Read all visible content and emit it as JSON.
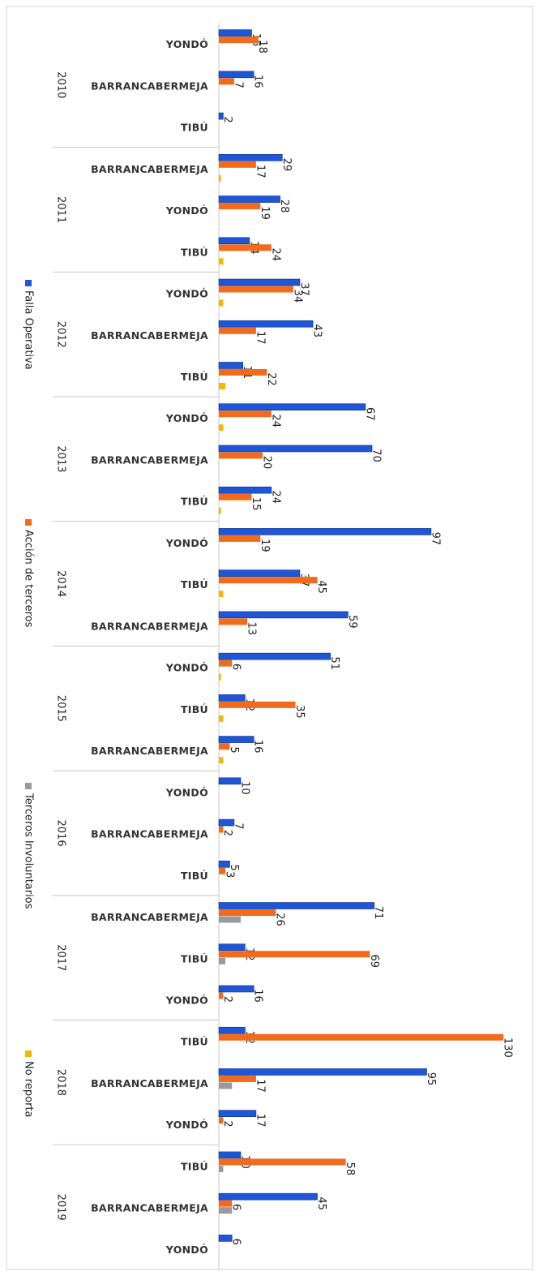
{
  "chart_data": {
    "type": "bar",
    "orientation": "horizontal",
    "category_groups": [
      "2010",
      "2011",
      "2012",
      "2013",
      "2014",
      "2015",
      "2016",
      "2017",
      "2018",
      "2019"
    ],
    "categories": [
      "YONDÓ",
      "BARRANCABERMEJA",
      "TIBÚ",
      "BARRANCABERMEJA",
      "YONDÓ",
      "TIBÚ",
      "YONDÓ",
      "BARRANCABERMEJA",
      "TIBÚ",
      "YONDÓ",
      "BARRANCABERMEJA",
      "TIBÚ",
      "YONDÓ",
      "TIBÚ",
      "BARRANCABERMEJA",
      "YONDÓ",
      "TIBÚ",
      "BARRANCABERMEJA",
      "YONDÓ",
      "BARRANCABERMEJA",
      "TIBÚ",
      "BARRANCABERMEJA",
      "TIBÚ",
      "YONDÓ",
      "TIBÚ",
      "BARRANCABERMEJA",
      "YONDÓ",
      "TIBÚ",
      "BARRANCABERMEJA",
      "YONDÓ"
    ],
    "series": [
      {
        "name": "Falla Operativa",
        "color": "#1f56d6",
        "data_labels": true,
        "values": [
          15,
          16,
          2,
          29,
          28,
          14,
          37,
          43,
          11,
          67,
          70,
          24,
          97,
          37,
          59,
          51,
          12,
          16,
          10,
          7,
          5,
          71,
          12,
          16,
          12,
          95,
          17,
          10,
          45,
          6
        ]
      },
      {
        "name": "Acción de terceros",
        "color": "#f26a1b",
        "data_labels": true,
        "values": [
          18,
          7,
          null,
          17,
          19,
          24,
          34,
          17,
          22,
          24,
          20,
          15,
          19,
          45,
          13,
          6,
          35,
          5,
          null,
          2,
          3,
          26,
          69,
          2,
          130,
          17,
          2,
          58,
          6,
          null
        ]
      },
      {
        "name": "Terceros Involuntarios",
        "color": "#9a9a9a",
        "data_labels": false,
        "values": [
          null,
          null,
          null,
          null,
          null,
          null,
          null,
          null,
          null,
          null,
          null,
          null,
          null,
          null,
          null,
          null,
          null,
          null,
          null,
          null,
          null,
          10,
          3,
          null,
          null,
          6,
          null,
          2,
          6,
          null
        ]
      },
      {
        "name": "No reporta",
        "color": "#f5b800",
        "data_labels": false,
        "values": [
          null,
          null,
          null,
          1,
          null,
          2,
          2,
          null,
          3,
          2,
          null,
          1,
          null,
          2,
          null,
          1,
          2,
          2,
          null,
          null,
          null,
          null,
          null,
          null,
          null,
          null,
          null,
          null,
          null,
          null
        ]
      }
    ]
  }
}
